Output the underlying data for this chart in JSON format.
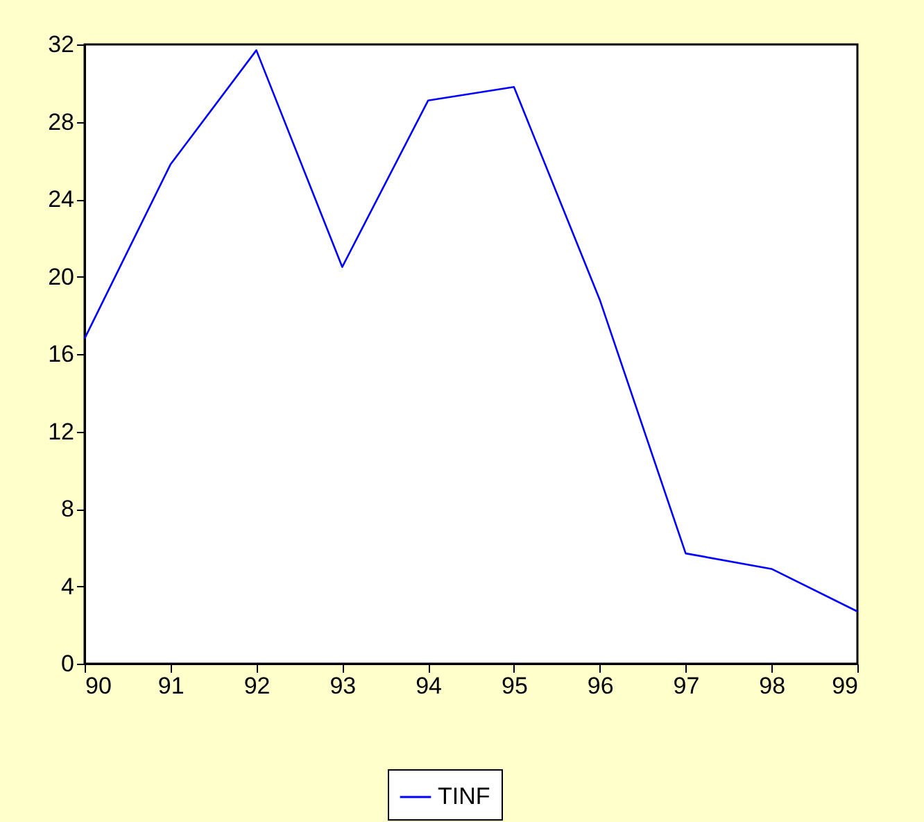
{
  "chart_data": {
    "type": "line",
    "x": [
      90,
      91,
      92,
      93,
      94,
      95,
      96,
      97,
      98,
      99
    ],
    "series": [
      {
        "name": "TINF",
        "color": "#0000ff",
        "values": [
          16.8,
          25.8,
          31.7,
          20.5,
          29.1,
          29.8,
          18.8,
          5.7,
          4.9,
          2.7
        ]
      }
    ],
    "xlim": [
      90,
      99
    ],
    "xticks": [
      90,
      91,
      92,
      93,
      94,
      95,
      96,
      97,
      98,
      99
    ],
    "ylim": [
      0,
      32
    ],
    "yticks": [
      0,
      4,
      8,
      12,
      16,
      20,
      24,
      28,
      32
    ],
    "grid": false,
    "legend": "bottom"
  }
}
